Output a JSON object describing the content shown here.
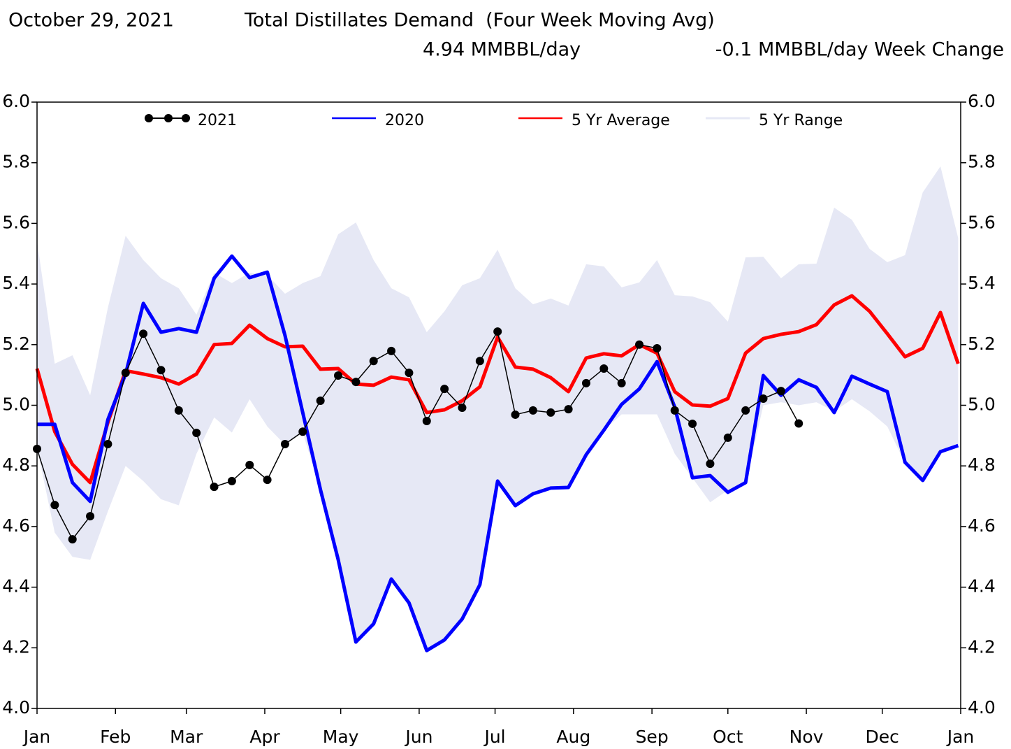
{
  "chart_data": {
    "type": "line",
    "date": "October 29, 2021",
    "title": "Total Distillates Demand  (Four Week Moving Avg)",
    "current": "4.94 MMBBL/day",
    "change": "-0.1 MMBBL/day Week Change",
    "x": [
      0,
      7,
      14,
      21,
      28,
      35,
      42,
      49,
      56,
      63,
      70,
      77,
      84,
      91,
      98,
      105,
      112,
      119,
      126,
      133,
      140,
      147,
      154,
      161,
      168,
      175,
      182,
      189,
      196,
      203,
      210,
      217,
      224,
      231,
      238,
      245,
      252,
      259,
      266,
      273,
      280,
      287,
      294,
      301,
      308,
      315,
      322,
      329,
      336,
      343,
      350,
      357,
      364
    ],
    "xlim": [
      0,
      365
    ],
    "xticks": [
      {
        "value": 0,
        "label": "Jan"
      },
      {
        "value": 31,
        "label": "Feb"
      },
      {
        "value": 59,
        "label": "Mar"
      },
      {
        "value": 90,
        "label": "Apr"
      },
      {
        "value": 120,
        "label": "May"
      },
      {
        "value": 151,
        "label": "Jun"
      },
      {
        "value": 181,
        "label": "Jul"
      },
      {
        "value": 212,
        "label": "Aug"
      },
      {
        "value": 243,
        "label": "Sep"
      },
      {
        "value": 273,
        "label": "Oct"
      },
      {
        "value": 304,
        "label": "Nov"
      },
      {
        "value": 334,
        "label": "Dec"
      },
      {
        "value": 365,
        "label": "Jan"
      }
    ],
    "ylim": [
      4.0,
      6.0
    ],
    "yticks": [
      {
        "value": 4.0,
        "label": "4.0"
      },
      {
        "value": 4.2,
        "label": "4.2"
      },
      {
        "value": 4.4,
        "label": "4.4"
      },
      {
        "value": 4.6,
        "label": "4.6"
      },
      {
        "value": 4.8,
        "label": "4.8"
      },
      {
        "value": 5.0,
        "label": "5.0"
      },
      {
        "value": 5.2,
        "label": "5.2"
      },
      {
        "value": 5.4,
        "label": "5.4"
      },
      {
        "value": 5.6,
        "label": "5.6"
      },
      {
        "value": 5.8,
        "label": "5.8"
      },
      {
        "value": 6.0,
        "label": "6.0"
      }
    ],
    "series": [
      {
        "name": "2021",
        "color": "#000000",
        "values": [
          4.856,
          4.671,
          4.558,
          4.634,
          4.872,
          5.107,
          5.236,
          5.116,
          4.983,
          4.909,
          4.731,
          4.75,
          4.803,
          4.754,
          4.872,
          4.913,
          5.015,
          5.098,
          5.077,
          5.146,
          5.179,
          5.107,
          4.948,
          5.054,
          4.992,
          5.146,
          5.243,
          4.969,
          4.983,
          4.976,
          4.987,
          5.073,
          5.121,
          5.073,
          5.2,
          5.188,
          4.983,
          4.939,
          4.807,
          4.893,
          4.983,
          5.022,
          5.047,
          4.94,
          null,
          null,
          null,
          null,
          null,
          null,
          null,
          null,
          null
        ]
      },
      {
        "name": "2020",
        "color": "#0000ff",
        "values": [
          4.937,
          4.937,
          4.745,
          4.683,
          4.953,
          5.103,
          5.336,
          5.241,
          5.253,
          5.241,
          5.419,
          5.492,
          5.421,
          5.439,
          5.23,
          4.976,
          4.722,
          4.491,
          4.219,
          4.279,
          4.427,
          4.348,
          4.191,
          4.226,
          4.295,
          4.408,
          4.75,
          4.669,
          4.708,
          4.727,
          4.729,
          4.837,
          4.918,
          5.003,
          5.054,
          5.144,
          4.994,
          4.761,
          4.768,
          4.713,
          4.745,
          5.098,
          5.033,
          5.084,
          5.059,
          4.976,
          5.096,
          5.07,
          5.045,
          4.812,
          4.752,
          4.847,
          4.867
        ]
      },
      {
        "name": "5 Yr Average",
        "color": "#ff0000",
        "values": [
          5.121,
          4.913,
          4.805,
          4.745,
          4.943,
          5.114,
          5.103,
          5.091,
          5.07,
          5.103,
          5.2,
          5.204,
          5.264,
          5.22,
          5.193,
          5.195,
          5.119,
          5.121,
          5.07,
          5.066,
          5.093,
          5.084,
          4.976,
          4.985,
          5.015,
          5.061,
          5.225,
          5.126,
          5.119,
          5.091,
          5.045,
          5.156,
          5.17,
          5.163,
          5.2,
          5.172,
          5.045,
          5.001,
          4.997,
          5.022,
          5.172,
          5.22,
          5.234,
          5.243,
          5.266,
          5.331,
          5.361,
          5.31,
          5.236,
          5.16,
          5.188,
          5.306,
          5.137
        ]
      },
      {
        "name": "5 Yr Range",
        "color": "#e6e8f5",
        "high": [
          5.541,
          5.137,
          5.165,
          5.033,
          5.322,
          5.559,
          5.479,
          5.419,
          5.386,
          5.299,
          5.437,
          5.403,
          5.437,
          5.43,
          5.368,
          5.403,
          5.426,
          5.564,
          5.603,
          5.479,
          5.386,
          5.356,
          5.241,
          5.31,
          5.396,
          5.419,
          5.513,
          5.386,
          5.333,
          5.352,
          5.329,
          5.465,
          5.458,
          5.389,
          5.405,
          5.479,
          5.363,
          5.359,
          5.34,
          5.276,
          5.488,
          5.49,
          5.419,
          5.465,
          5.467,
          5.652,
          5.612,
          5.516,
          5.472,
          5.495,
          5.702,
          5.788,
          5.552
        ],
        "low": [
          4.86,
          4.58,
          4.5,
          4.49,
          4.65,
          4.8,
          4.75,
          4.69,
          4.67,
          4.84,
          4.96,
          4.91,
          5.02,
          4.93,
          4.87,
          4.91,
          4.722,
          4.491,
          4.219,
          4.279,
          4.427,
          4.348,
          4.191,
          4.226,
          4.295,
          4.408,
          4.75,
          4.669,
          4.708,
          4.727,
          4.729,
          4.837,
          4.918,
          4.97,
          4.97,
          4.97,
          4.84,
          4.76,
          4.68,
          4.72,
          4.74,
          5.0,
          5.01,
          5.0,
          5.01,
          4.98,
          5.02,
          4.98,
          4.93,
          4.81,
          4.75,
          4.85,
          4.87
        ]
      }
    ]
  }
}
